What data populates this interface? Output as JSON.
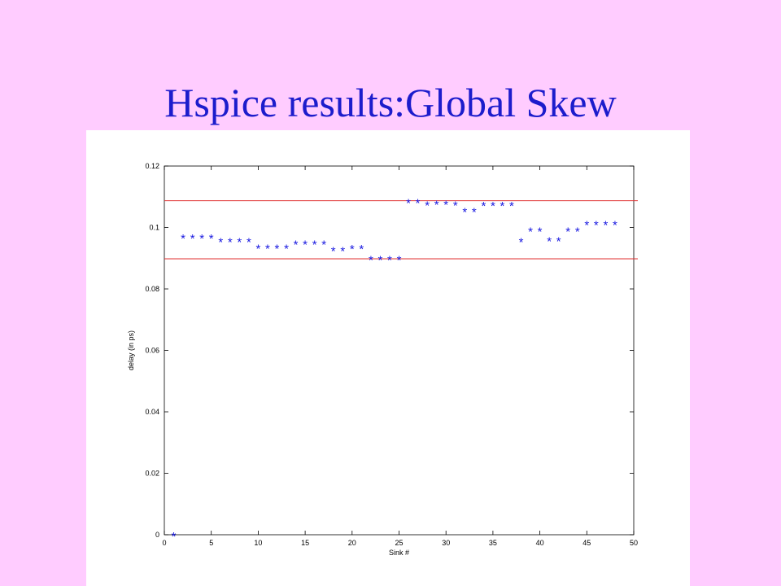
{
  "slide": {
    "title": "Hspice results:Global Skew",
    "background": "#ffccff",
    "title_color": "#1c1ccc"
  },
  "chart_data": {
    "type": "scatter",
    "marker": "*",
    "marker_color": "#1818e0",
    "xlabel": "Sink #",
    "ylabel": "delay (in ps)",
    "xlim": [
      0,
      50
    ],
    "ylim": [
      0,
      0.12
    ],
    "xticks": [
      0,
      5,
      10,
      15,
      20,
      25,
      30,
      35,
      40,
      45,
      50
    ],
    "xtick_labels": [
      "0",
      "5",
      "10",
      "15",
      "20",
      "25",
      "30",
      "35",
      "40",
      "45",
      "50"
    ],
    "yticks": [
      0,
      0.02,
      0.04,
      0.06,
      0.08,
      0.1,
      0.12
    ],
    "ytick_labels": [
      "0",
      "0.02",
      "0.04",
      "0.06",
      "0.08",
      "0.1",
      "0.12"
    ],
    "grid": false,
    "series": [
      {
        "x": [
          1,
          2,
          3,
          4,
          5,
          6,
          7,
          8,
          9,
          10,
          11,
          12,
          13,
          14,
          15,
          16,
          17,
          18,
          19,
          20,
          21,
          22,
          23,
          24,
          25,
          26,
          27,
          28,
          29,
          30,
          31,
          32,
          33,
          34,
          35,
          36,
          37,
          38,
          39,
          40,
          41,
          42,
          43,
          44,
          45,
          46,
          47,
          48
        ],
        "y": [
          0.0,
          0.097,
          0.097,
          0.097,
          0.097,
          0.0957,
          0.0957,
          0.0957,
          0.0957,
          0.0937,
          0.0937,
          0.0937,
          0.0937,
          0.095,
          0.095,
          0.095,
          0.095,
          0.0928,
          0.0928,
          0.0935,
          0.0935,
          0.09,
          0.09,
          0.09,
          0.09,
          0.1085,
          0.1085,
          0.1077,
          0.108,
          0.108,
          0.1077,
          0.1055,
          0.1055,
          0.1075,
          0.1075,
          0.1075,
          0.1075,
          0.0958,
          0.0992,
          0.0992,
          0.096,
          0.096,
          0.0992,
          0.0992,
          0.1013,
          0.1013,
          0.1013,
          0.1013
        ]
      }
    ],
    "reference_lines": [
      {
        "y": 0.1087,
        "color": "#e03030"
      },
      {
        "y": 0.0898,
        "color": "#e03030"
      }
    ]
  }
}
